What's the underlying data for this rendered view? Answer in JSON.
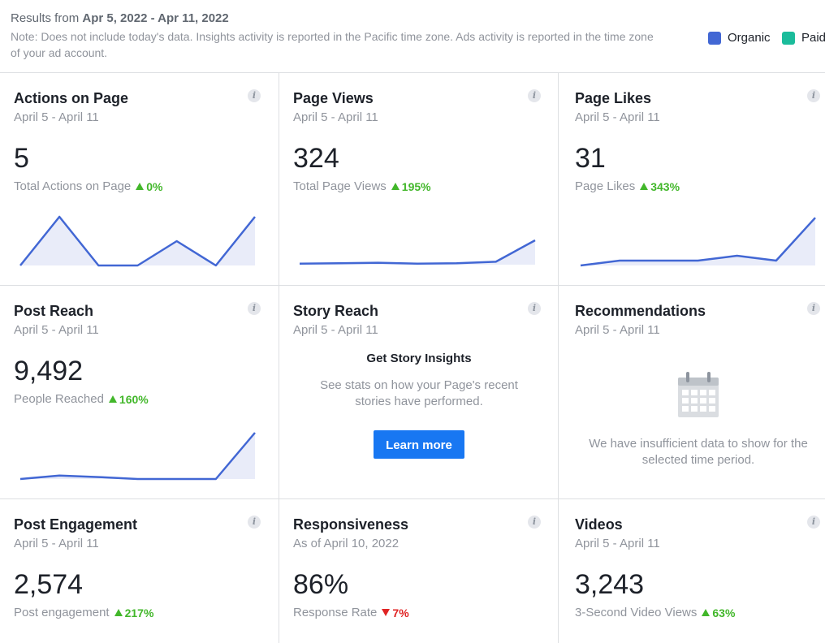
{
  "header": {
    "results_prefix": "Results from",
    "date_range": "Apr 5, 2022 - Apr 11, 2022",
    "note": "Note: Does not include today's data. Insights activity is reported in the Pacific time zone. Ads activity is reported in the time zone of your ad account.",
    "legend": [
      {
        "label": "Organic",
        "color": "#4267d4"
      },
      {
        "label": "Paid",
        "color": "#1bbc9b"
      }
    ]
  },
  "colors": {
    "line": "#4267d4",
    "fill": "#e9ecf9",
    "up": "#42b72a",
    "down": "#e02424"
  },
  "cards": {
    "actions": {
      "title": "Actions on Page",
      "subtitle": "April 5 - April 11",
      "value": "5",
      "metric": "Total Actions on Page",
      "delta": "0%",
      "spark": [
        0,
        1,
        0,
        0,
        0.5,
        0,
        1
      ]
    },
    "views": {
      "title": "Page Views",
      "subtitle": "April 5 - April 11",
      "value": "324",
      "metric": "Total Page Views",
      "delta": "195%",
      "spark": [
        0.02,
        0.03,
        0.04,
        0.02,
        0.03,
        0.06,
        0.5
      ]
    },
    "likes": {
      "title": "Page Likes",
      "subtitle": "April 5 - April 11",
      "value": "31",
      "metric": "Page Likes",
      "delta": "343%",
      "spark": [
        0.0,
        0.1,
        0.1,
        0.1,
        0.2,
        0.1,
        0.98
      ]
    },
    "reach": {
      "title": "Post Reach",
      "subtitle": "April 5 - April 11",
      "value": "9,492",
      "metric": "People Reached",
      "delta": "160%",
      "spark": [
        0.0,
        0.07,
        0.04,
        0.0,
        0.0,
        0.0,
        0.95
      ]
    },
    "story": {
      "title": "Story Reach",
      "subtitle": "April 5 - April 11",
      "heading": "Get Story Insights",
      "description": "See stats on how your Page's recent stories have performed.",
      "button": "Learn more"
    },
    "recommendations": {
      "title": "Recommendations",
      "subtitle": "April 5 - April 11",
      "message": "We have insufficient data to show for the selected time period."
    },
    "engagement": {
      "title": "Post Engagement",
      "subtitle": "April 5 - April 11",
      "value": "2,574",
      "metric": "Post engagement",
      "delta": "217%"
    },
    "responsiveness": {
      "title": "Responsiveness",
      "subtitle": "As of April 10, 2022",
      "value": "86%",
      "metric": "Response Rate",
      "delta": "7%"
    },
    "videos": {
      "title": "Videos",
      "subtitle": "April 5 - April 11",
      "value": "3,243",
      "metric": "3-Second Video Views",
      "delta": "63%"
    }
  }
}
